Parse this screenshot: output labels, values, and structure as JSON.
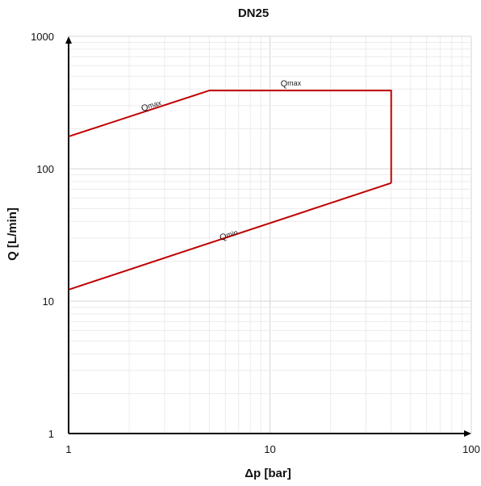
{
  "chart_data": {
    "type": "line",
    "title": "DN25",
    "xlabel": "Δp [bar]",
    "ylabel": "Q [L/min]",
    "xscale": "log",
    "yscale": "log",
    "xlim": [
      1,
      100
    ],
    "ylim": [
      1,
      1000
    ],
    "grid": true,
    "x_ticks": [
      {
        "value": 1,
        "label": "1"
      },
      {
        "value": 10,
        "label": "10"
      },
      {
        "value": 100,
        "label": "100"
      }
    ],
    "y_ticks": [
      {
        "value": 1,
        "label": "1"
      },
      {
        "value": 10,
        "label": "10"
      },
      {
        "value": 100,
        "label": "100"
      },
      {
        "value": 1000,
        "label": "1000"
      }
    ],
    "series_color": "#c00000",
    "series": [
      {
        "x": [
          1,
          5,
          40,
          40
        ],
        "y": [
          175,
          390,
          390,
          78
        ]
      },
      {
        "x": [
          1,
          40
        ],
        "y": [
          12.2,
          78
        ]
      }
    ],
    "annotations": [
      {
        "main": "Q",
        "sub": "max",
        "x": 2.6,
        "y": 285,
        "rotation": -17
      },
      {
        "main": "Q",
        "sub": "max",
        "x": 12.7,
        "y": 418,
        "rotation": 0
      },
      {
        "main": "Q",
        "sub": "min",
        "x": 6.3,
        "y": 30,
        "rotation": -17
      }
    ]
  }
}
